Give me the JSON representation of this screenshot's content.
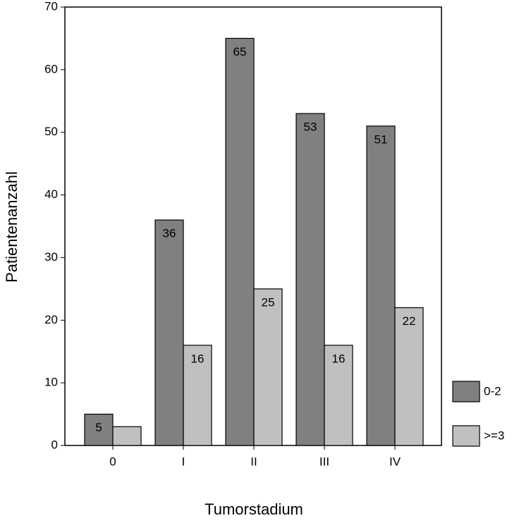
{
  "chart_data": {
    "type": "bar",
    "y_label": "Patientenanzahl",
    "x_label": "Tumorstadium",
    "categories": [
      "0",
      "I",
      "II",
      "III",
      "IV"
    ],
    "series": [
      {
        "name": "0-2",
        "color": "#808080",
        "values": [
          5,
          36,
          65,
          53,
          51
        ]
      },
      {
        "name": ">=3",
        "color": "#c0c0c0",
        "values": [
          3,
          16,
          25,
          16,
          22
        ],
        "value_labels": [
          null,
          "16",
          "25",
          "16",
          "22"
        ]
      }
    ],
    "ylim": [
      0,
      70
    ],
    "yticks": [
      0,
      10,
      20,
      30,
      40,
      50,
      60,
      70
    ],
    "legend": "right"
  }
}
